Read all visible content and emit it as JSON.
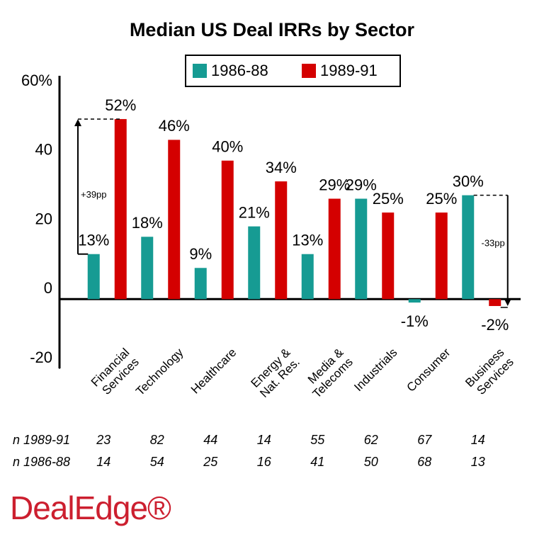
{
  "chart_data": {
    "type": "bar",
    "title": "Median US Deal IRRs by Sector",
    "categories": [
      "Financial Services",
      "Technology",
      "Healthcare",
      "Energy & Nat. Res.",
      "Media & Telecoms",
      "Industrials",
      "Consumer",
      "Business Services"
    ],
    "series": [
      {
        "name": "1986-88",
        "color": "#169b93",
        "values": [
          13,
          18,
          9,
          21,
          13,
          29,
          -1,
          30
        ],
        "value_labels": [
          "13%",
          "18%",
          "9%",
          "21%",
          "13%",
          "29%",
          "-1%",
          "30%"
        ]
      },
      {
        "name": "1989-91",
        "color": "#d40000",
        "values": [
          52,
          46,
          40,
          34,
          29,
          25,
          25,
          -2
        ],
        "value_labels": [
          "52%",
          "46%",
          "40%",
          "34%",
          "29%",
          "25%",
          "25%",
          "-2%"
        ]
      }
    ],
    "ylim": [
      -20,
      60
    ],
    "yticks": [
      {
        "value": 60,
        "label": "60%"
      },
      40,
      20,
      0,
      -20
    ],
    "annotations": [
      "+39pp",
      "-33pp"
    ],
    "sample_sizes": [
      {
        "label": "n 1989-91",
        "values": [
          23,
          82,
          44,
          14,
          55,
          62,
          67,
          14
        ]
      },
      {
        "label": "n 1986-88",
        "values": [
          14,
          54,
          25,
          16,
          41,
          50,
          68,
          13
        ]
      }
    ],
    "brand": "DealEdge®"
  }
}
